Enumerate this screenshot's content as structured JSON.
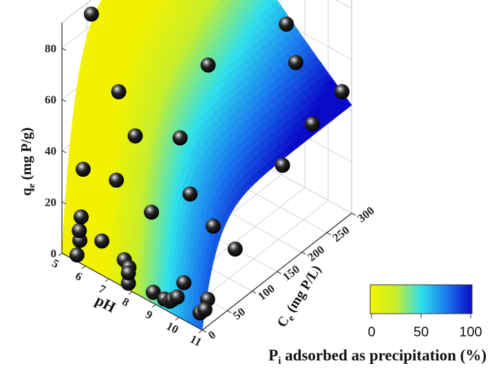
{
  "chart_data": {
    "type": "scatter",
    "subtype": "3d-surface-with-points",
    "axes": {
      "ph": {
        "ticks": [
          "5",
          "6",
          "7",
          "8",
          "9",
          "10",
          "11"
        ],
        "range": [
          5,
          11
        ]
      },
      "ce": {
        "ticks": [
          "0",
          "50",
          "100",
          "150",
          "200",
          "250",
          "300"
        ],
        "range": [
          0,
          300
        ]
      },
      "qe": {
        "ticks": [
          "0",
          "20",
          "40",
          "60",
          "80"
        ],
        "range": [
          0,
          90
        ]
      }
    },
    "labels": {
      "ph_axis": "pH",
      "ce_axis_main": "C",
      "ce_axis_sub": "e",
      "ce_axis_unit": " (mg P/L)",
      "qe_axis_main": "q",
      "qe_axis_sub": "e",
      "qe_axis_unit": " (mg P/g)",
      "colorbar_title_main": "P",
      "colorbar_title_sub": "i",
      "colorbar_title_rest": " adsorbed as precipitation (%)"
    },
    "grid": true,
    "colorbar": {
      "ticks": [
        "0",
        "50",
        "100"
      ],
      "range": [
        0,
        100
      ],
      "colors": [
        "#f2f200",
        "#c8ee2a",
        "#2ee0ee",
        "#1a78ee",
        "#0a0ac8"
      ],
      "placement": "bottom-right"
    },
    "points": [
      {
        "ph": 5.3,
        "ce": 45,
        "qe": 88
      },
      {
        "ph": 5.8,
        "ce": 5,
        "qe": 36
      },
      {
        "ph": 5.7,
        "ce": 3,
        "qe": 8
      },
      {
        "ph": 5.6,
        "ce": 2,
        "qe": 2
      },
      {
        "ph": 5.7,
        "ce": 2,
        "qe": 12
      },
      {
        "ph": 5.8,
        "ce": 1,
        "qe": 18
      },
      {
        "ph": 6.9,
        "ce": 20,
        "qe": 35
      },
      {
        "ph": 6.6,
        "ce": 5,
        "qe": 12
      },
      {
        "ph": 7.6,
        "ce": 25,
        "qe": 55
      },
      {
        "ph": 7.0,
        "ce": 20,
        "qe": 70
      },
      {
        "ph": 7.6,
        "ce": 3,
        "qe": 10
      },
      {
        "ph": 7.8,
        "ce": 2,
        "qe": 2
      },
      {
        "ph": 7.8,
        "ce": 2,
        "qe": 6
      },
      {
        "ph": 7.8,
        "ce": 3,
        "qe": 8
      },
      {
        "ph": 8.4,
        "ce": 20,
        "qe": 30
      },
      {
        "ph": 8.8,
        "ce": 5,
        "qe": 3
      },
      {
        "ph": 9.2,
        "ce": 40,
        "qe": 60
      },
      {
        "ph": 8.8,
        "ce": 115,
        "qe": 75
      },
      {
        "ph": 9.2,
        "ce": 60,
        "qe": 35
      },
      {
        "ph": 9.5,
        "ce": 5,
        "qe": 3
      },
      {
        "ph": 9.3,
        "ce": 4,
        "qe": 3
      },
      {
        "ph": 9.6,
        "ce": 6,
        "qe": 4
      },
      {
        "ph": 9.8,
        "ce": 6,
        "qe": 6
      },
      {
        "ph": 10.0,
        "ce": 10,
        "qe": 12
      },
      {
        "ph": 10.4,
        "ce": 50,
        "qe": 30
      },
      {
        "ph": 10.1,
        "ce": 230,
        "qe": 65
      },
      {
        "ph": 9.7,
        "ce": 230,
        "qe": 78
      },
      {
        "ph": 10.8,
        "ce": 5,
        "qe": 5
      },
      {
        "ph": 10.9,
        "ce": 10,
        "qe": 6
      },
      {
        "ph": 10.8,
        "ce": 20,
        "qe": 8
      },
      {
        "ph": 10.7,
        "ce": 80,
        "qe": 18
      },
      {
        "ph": 10.6,
        "ce": 180,
        "qe": 35
      },
      {
        "ph": 10.6,
        "ce": 240,
        "qe": 42
      },
      {
        "ph": 10.8,
        "ce": 290,
        "qe": 48
      }
    ]
  }
}
